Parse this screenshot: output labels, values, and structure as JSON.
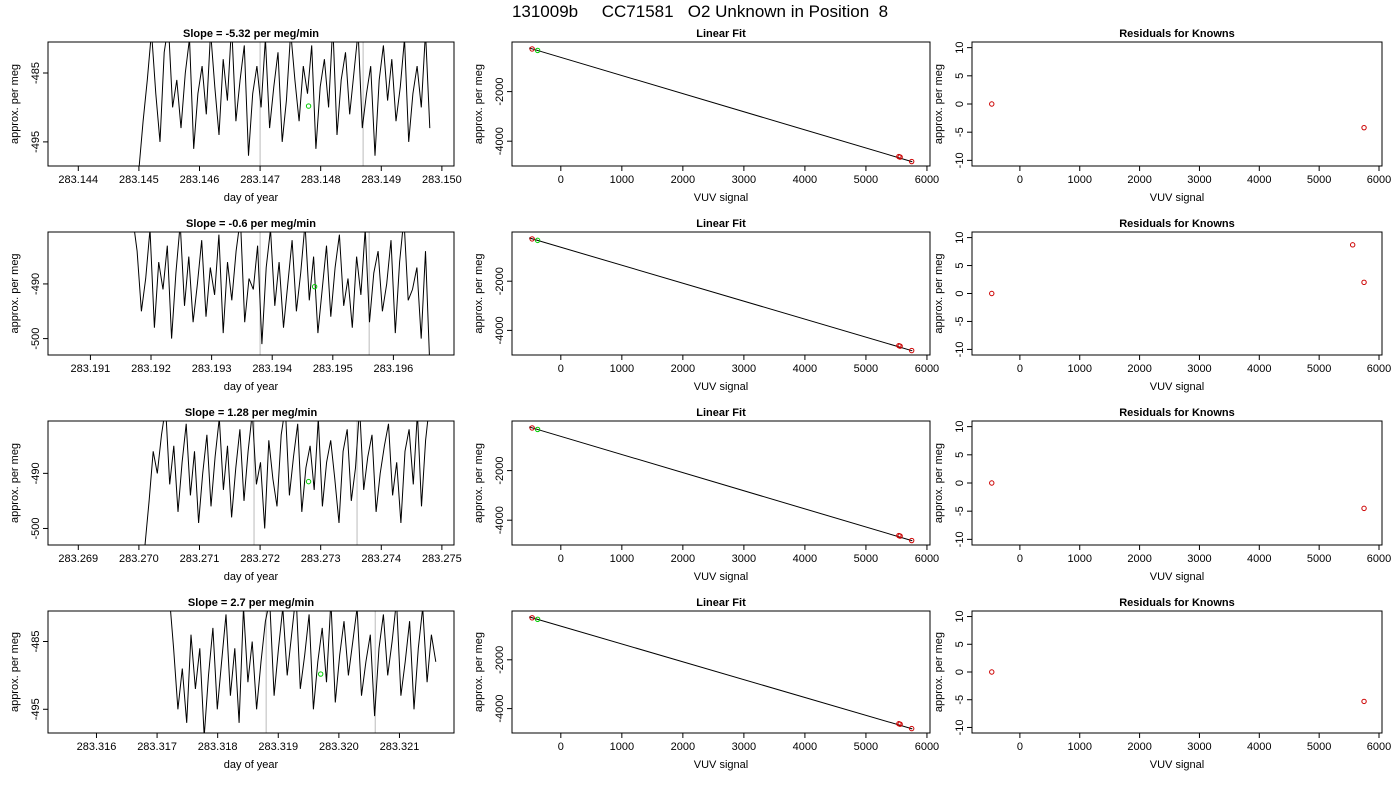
{
  "title": "131009b     CC71581   O2 Unknown in Position  8",
  "chart_data": [
    {
      "type": "line",
      "title": "Slope =  -5.32  per meg/min",
      "xlabel": "day of year",
      "ylabel": "approx. per meg",
      "xlim": [
        283.1435,
        283.1502
      ],
      "ylim": [
        -498.5,
        -480.5
      ],
      "xticks": [
        "283.144",
        "283.145",
        "283.146",
        "283.147",
        "283.148",
        "283.149",
        "283.150"
      ],
      "yticks": [
        "-485",
        "-495"
      ],
      "vlines": [
        283.147,
        283.1487
      ],
      "marker": {
        "x": 283.1478,
        "y": -489.8,
        "color": "#00cc00"
      },
      "series": [
        {
          "x_start": 283.145,
          "x_end": 283.1498,
          "seed": 11,
          "values": [
            -499,
            -492,
            -486,
            -479,
            -488,
            -495,
            -482,
            -478,
            -490,
            -486,
            -493,
            -485,
            -480,
            -496,
            -488,
            -484,
            -491,
            -479,
            -487,
            -494,
            -483,
            -489,
            -478,
            -492,
            -486,
            -481,
            -497,
            -488,
            -484,
            -490,
            -480,
            -493,
            -487,
            -482,
            -495,
            -489,
            -479,
            -486,
            -492,
            -484,
            -488,
            -481,
            -496,
            -487,
            -483,
            -490,
            -478,
            -494,
            -486,
            -482,
            -491,
            -485,
            -479,
            -493,
            -488,
            -484,
            -497,
            -486,
            -481,
            -489,
            -483,
            -492,
            -487,
            -480,
            -495,
            -488,
            -484,
            -490,
            -479,
            -493
          ]
        }
      ]
    },
    {
      "type": "scatter",
      "title": "Linear Fit",
      "xlabel": "VUV signal",
      "ylabel": "approx. per meg",
      "xlim": [
        -800,
        6050
      ],
      "ylim": [
        -5000,
        0
      ],
      "xticks": [
        "0",
        "1000",
        "2000",
        "3000",
        "4000",
        "5000",
        "6000"
      ],
      "yticks": [
        "-2000",
        "-4000"
      ],
      "line": {
        "x": [
          -520,
          5760
        ],
        "y": [
          -240,
          -4830
        ]
      },
      "points": [
        {
          "x": -470,
          "y": -280,
          "color": "#cc0000"
        },
        {
          "x": -380,
          "y": -340,
          "color": "#00cc00"
        },
        {
          "x": 5540,
          "y": -4620,
          "color": "#cc0000"
        },
        {
          "x": 5560,
          "y": -4640,
          "color": "#cc0000"
        },
        {
          "x": 5750,
          "y": -4820,
          "color": "#cc0000"
        }
      ]
    },
    {
      "type": "scatter",
      "title": "Residuals for Knowns",
      "xlabel": "VUV signal",
      "ylabel": "approx. per meg",
      "xlim": [
        -800,
        6050
      ],
      "ylim": [
        -11,
        11
      ],
      "xticks": [
        "0",
        "1000",
        "2000",
        "3000",
        "4000",
        "5000",
        "6000"
      ],
      "yticks": [
        "-10",
        "-5",
        "0",
        "5",
        "10"
      ],
      "points": [
        {
          "x": -470,
          "y": 0,
          "color": "#cc0000"
        },
        {
          "x": 5750,
          "y": -4.2,
          "color": "#cc0000"
        }
      ]
    },
    {
      "type": "line",
      "title": "Slope =  -0.6  per meg/min",
      "xlabel": "day of year",
      "ylabel": "approx. per meg",
      "xlim": [
        283.1903,
        283.197
      ],
      "ylim": [
        -503,
        -480.5
      ],
      "xticks": [
        "283.191",
        "283.192",
        "283.193",
        "283.194",
        "283.195",
        "283.196"
      ],
      "yticks": [
        "-490",
        "-500"
      ],
      "vlines": [
        283.1938,
        283.1956
      ],
      "marker": {
        "x": 283.1947,
        "y": -490.5,
        "color": "#00cc00"
      },
      "series": [
        {
          "x_start": 283.1917,
          "x_end": 283.1966,
          "seed": 22,
          "values": [
            -478,
            -484,
            -495,
            -489,
            -480,
            -498,
            -486,
            -491,
            -483,
            -500,
            -488,
            -479,
            -494,
            -485,
            -497,
            -490,
            -482,
            -496,
            -487,
            -492,
            -481,
            -499,
            -486,
            -493,
            -484,
            -478,
            -497,
            -489,
            -491,
            -483,
            -501,
            -487,
            -480,
            -494,
            -486,
            -498,
            -490,
            -482,
            -495,
            -488,
            -479,
            -493,
            -485,
            -499,
            -491,
            -483,
            -496,
            -487,
            -481,
            -494,
            -489,
            -498,
            -485,
            -492,
            -480,
            -497,
            -488,
            -484,
            -495,
            -490,
            -482,
            -499,
            -486,
            -478,
            -493,
            -491,
            -487,
            -500,
            -484,
            -505
          ]
        }
      ]
    },
    {
      "type": "scatter",
      "title": "Linear Fit",
      "xlabel": "VUV signal",
      "ylabel": "approx. per meg",
      "xlim": [
        -800,
        6050
      ],
      "ylim": [
        -5000,
        0
      ],
      "xticks": [
        "0",
        "1000",
        "2000",
        "3000",
        "4000",
        "5000",
        "6000"
      ],
      "yticks": [
        "-2000",
        "-4000"
      ],
      "line": {
        "x": [
          -520,
          5760
        ],
        "y": [
          -240,
          -4830
        ]
      },
      "points": [
        {
          "x": -470,
          "y": -280,
          "color": "#cc0000"
        },
        {
          "x": -380,
          "y": -340,
          "color": "#00cc00"
        },
        {
          "x": 5540,
          "y": -4620,
          "color": "#cc0000"
        },
        {
          "x": 5560,
          "y": -4640,
          "color": "#cc0000"
        },
        {
          "x": 5750,
          "y": -4820,
          "color": "#cc0000"
        }
      ]
    },
    {
      "type": "scatter",
      "title": "Residuals for Knowns",
      "xlabel": "VUV signal",
      "ylabel": "approx. per meg",
      "xlim": [
        -800,
        6050
      ],
      "ylim": [
        -11,
        11
      ],
      "xticks": [
        "0",
        "1000",
        "2000",
        "3000",
        "4000",
        "5000",
        "6000"
      ],
      "yticks": [
        "-10",
        "-5",
        "0",
        "5",
        "10"
      ],
      "points": [
        {
          "x": -470,
          "y": 0,
          "color": "#cc0000"
        },
        {
          "x": 5560,
          "y": 8.7,
          "color": "#cc0000"
        },
        {
          "x": 5750,
          "y": 2.0,
          "color": "#cc0000"
        }
      ]
    },
    {
      "type": "line",
      "title": "Slope =  1.28  per meg/min",
      "xlabel": "day of year",
      "ylabel": "approx. per meg",
      "xlim": [
        283.2685,
        283.2752
      ],
      "ylim": [
        -503,
        -480.5
      ],
      "xticks": [
        "283.269",
        "283.270",
        "283.271",
        "283.272",
        "283.273",
        "283.274",
        "283.275"
      ],
      "yticks": [
        "-490",
        "-500"
      ],
      "vlines": [
        283.2719,
        283.2736
      ],
      "marker": {
        "x": 283.2728,
        "y": -491.5,
        "color": "#00cc00"
      },
      "series": [
        {
          "x_start": 283.2701,
          "x_end": 283.2748,
          "seed": 33,
          "values": [
            -503,
            -495,
            -486,
            -490,
            -483,
            -478,
            -492,
            -485,
            -497,
            -488,
            -481,
            -494,
            -486,
            -499,
            -490,
            -483,
            -496,
            -487,
            -480,
            -493,
            -485,
            -498,
            -489,
            -482,
            -495,
            -486,
            -479,
            -492,
            -488,
            -500,
            -484,
            -491,
            -496,
            -483,
            -478,
            -494,
            -487,
            -481,
            -497,
            -489,
            -485,
            -493,
            -480,
            -496,
            -488,
            -484,
            -491,
            -499,
            -486,
            -482,
            -495,
            -489,
            -478,
            -493,
            -487,
            -483,
            -497,
            -490,
            -485,
            -481,
            -494,
            -488,
            -499,
            -486,
            -482,
            -492,
            -479,
            -496,
            -484,
            -477
          ]
        }
      ]
    },
    {
      "type": "scatter",
      "title": "Linear Fit",
      "xlabel": "VUV signal",
      "ylabel": "approx. per meg",
      "xlim": [
        -800,
        6050
      ],
      "ylim": [
        -5000,
        0
      ],
      "xticks": [
        "0",
        "1000",
        "2000",
        "3000",
        "4000",
        "5000",
        "6000"
      ],
      "yticks": [
        "-2000",
        "-4000"
      ],
      "line": {
        "x": [
          -520,
          5760
        ],
        "y": [
          -240,
          -4830
        ]
      },
      "points": [
        {
          "x": -470,
          "y": -280,
          "color": "#cc0000"
        },
        {
          "x": -380,
          "y": -340,
          "color": "#00cc00"
        },
        {
          "x": 5540,
          "y": -4620,
          "color": "#cc0000"
        },
        {
          "x": 5560,
          "y": -4640,
          "color": "#cc0000"
        },
        {
          "x": 5750,
          "y": -4820,
          "color": "#cc0000"
        }
      ]
    },
    {
      "type": "scatter",
      "title": "Residuals for Knowns",
      "xlabel": "VUV signal",
      "ylabel": "approx. per meg",
      "xlim": [
        -800,
        6050
      ],
      "ylim": [
        -11,
        11
      ],
      "xticks": [
        "0",
        "1000",
        "2000",
        "3000",
        "4000",
        "5000",
        "6000"
      ],
      "yticks": [
        "-10",
        "-5",
        "0",
        "5",
        "10"
      ],
      "points": [
        {
          "x": -470,
          "y": 0,
          "color": "#cc0000"
        },
        {
          "x": 5750,
          "y": -4.5,
          "color": "#cc0000"
        }
      ]
    },
    {
      "type": "line",
      "title": "Slope =  2.7  per meg/min",
      "xlabel": "day of year",
      "ylabel": "approx. per meg",
      "xlim": [
        283.3152,
        283.3219
      ],
      "ylim": [
        -498.5,
        -480.5
      ],
      "xticks": [
        "283.316",
        "283.317",
        "283.318",
        "283.319",
        "283.320",
        "283.321"
      ],
      "yticks": [
        "-485",
        "-495"
      ],
      "vlines": [
        283.3188,
        283.3206
      ],
      "marker": {
        "x": 283.3197,
        "y": -489.8,
        "color": "#00cc00"
      },
      "series": [
        {
          "x_start": 283.3172,
          "x_end": 283.3216,
          "seed": 44,
          "values": [
            -478,
            -486,
            -495,
            -489,
            -497,
            -484,
            -492,
            -486,
            -499,
            -490,
            -483,
            -495,
            -488,
            -481,
            -493,
            -486,
            -497,
            -480,
            -491,
            -485,
            -495,
            -488,
            -482,
            -479,
            -493,
            -486,
            -480,
            -490,
            -484,
            -478,
            -492,
            -487,
            -481,
            -495,
            -488,
            -483,
            -491,
            -479,
            -494,
            -487,
            -482,
            -490,
            -485,
            -480,
            -493,
            -488,
            -484,
            -496,
            -486,
            -481,
            -490,
            -485,
            -479,
            -493,
            -488,
            -482,
            -495,
            -486,
            -480,
            -491,
            -484,
            -488
          ]
        }
      ]
    },
    {
      "type": "scatter",
      "title": "Linear Fit",
      "xlabel": "VUV signal",
      "ylabel": "approx. per meg",
      "xlim": [
        -800,
        6050
      ],
      "ylim": [
        -5000,
        0
      ],
      "xticks": [
        "0",
        "1000",
        "2000",
        "3000",
        "4000",
        "5000",
        "6000"
      ],
      "yticks": [
        "-2000",
        "-4000"
      ],
      "line": {
        "x": [
          -520,
          5760
        ],
        "y": [
          -240,
          -4830
        ]
      },
      "points": [
        {
          "x": -470,
          "y": -280,
          "color": "#cc0000"
        },
        {
          "x": -380,
          "y": -340,
          "color": "#00cc00"
        },
        {
          "x": 5540,
          "y": -4620,
          "color": "#cc0000"
        },
        {
          "x": 5560,
          "y": -4640,
          "color": "#cc0000"
        },
        {
          "x": 5750,
          "y": -4820,
          "color": "#cc0000"
        }
      ]
    },
    {
      "type": "scatter",
      "title": "Residuals for Knowns",
      "xlabel": "VUV signal",
      "ylabel": "approx. per meg",
      "xlim": [
        -800,
        6050
      ],
      "ylim": [
        -11,
        11
      ],
      "xticks": [
        "0",
        "1000",
        "2000",
        "3000",
        "4000",
        "5000",
        "6000"
      ],
      "yticks": [
        "-10",
        "-5",
        "0",
        "5",
        "10"
      ],
      "points": [
        {
          "x": -470,
          "y": 0,
          "color": "#cc0000"
        },
        {
          "x": 5750,
          "y": -5.3,
          "color": "#cc0000"
        }
      ]
    }
  ]
}
